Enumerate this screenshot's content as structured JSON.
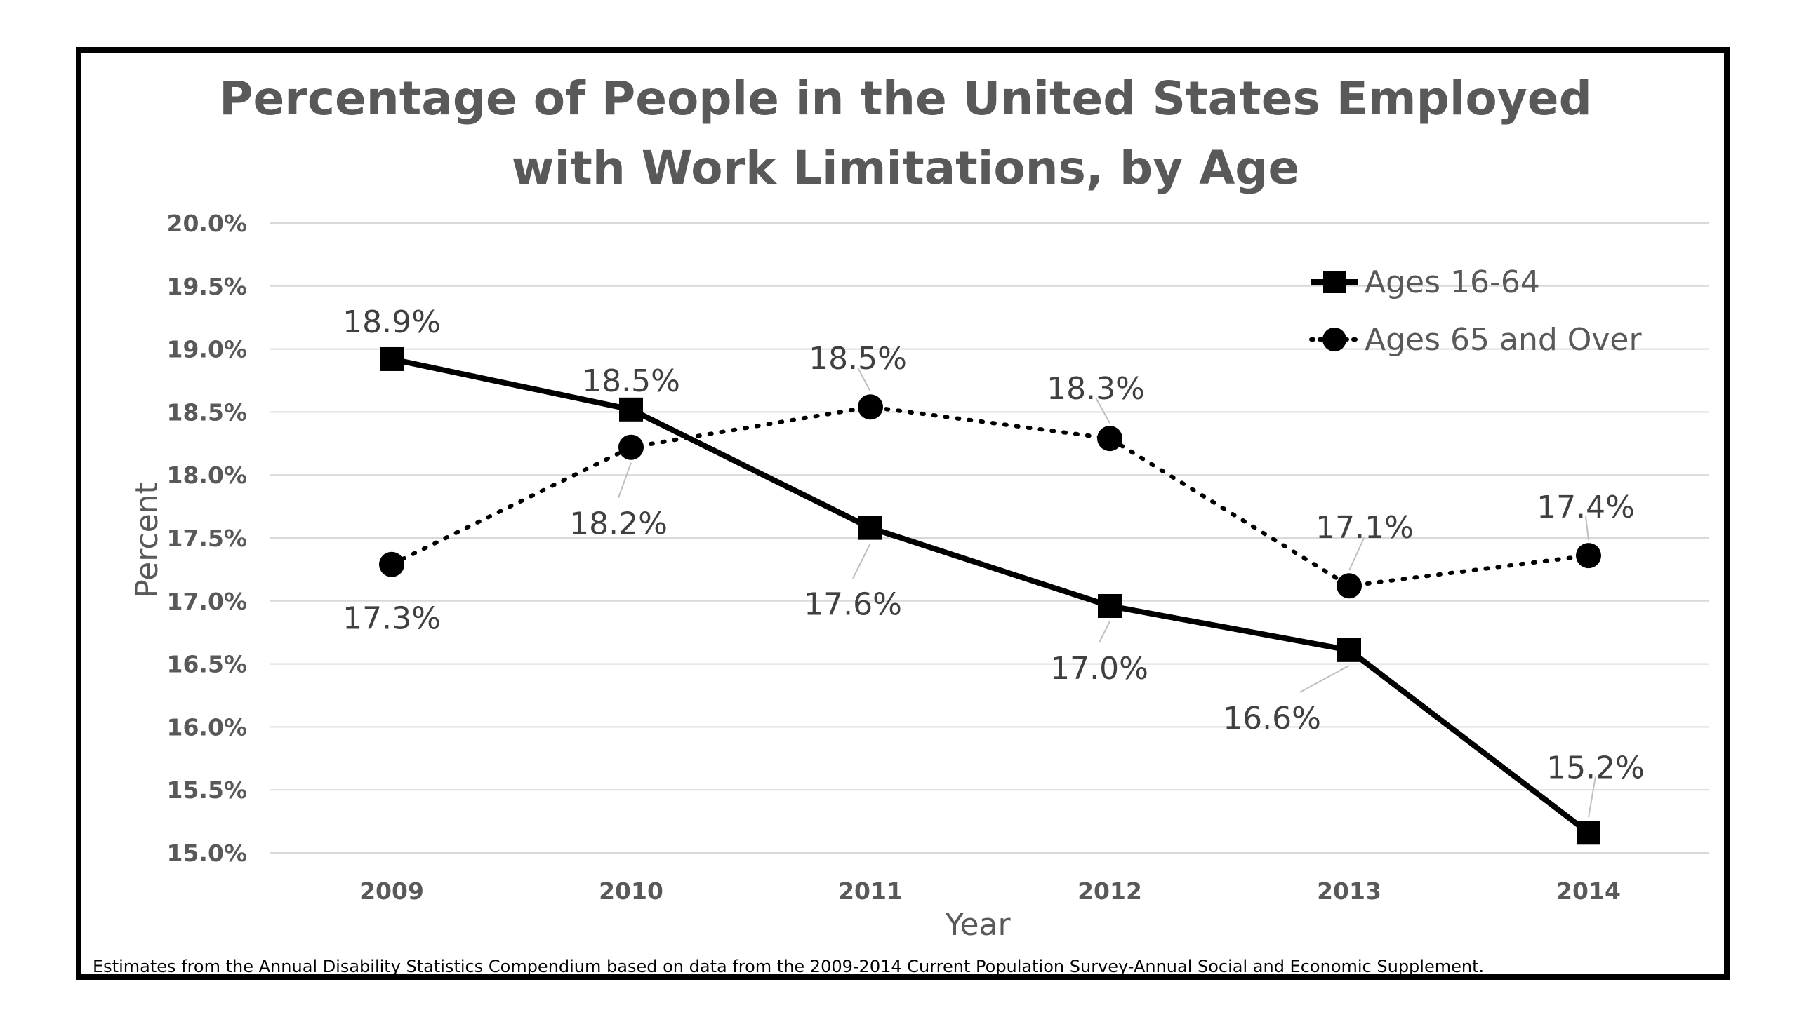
{
  "chart_data": {
    "type": "line",
    "title": "Percentage of People in the United States Employed with Work Limitations, by Age",
    "title_lines": [
      "Percentage of People in the United States Employed",
      "with Work Limitations, by Age"
    ],
    "xlabel": "Year",
    "ylabel": "Percent",
    "categories": [
      "2009",
      "2010",
      "2011",
      "2012",
      "2013",
      "2014"
    ],
    "ylim": [
      15.0,
      20.0
    ],
    "yticks": [
      15.0,
      15.5,
      16.0,
      16.5,
      17.0,
      17.5,
      18.0,
      18.5,
      19.0,
      19.5,
      20.0
    ],
    "ytick_labels": [
      "15.0%",
      "15.5%",
      "16.0%",
      "16.5%",
      "17.0%",
      "17.5%",
      "18.0%",
      "18.5%",
      "19.0%",
      "19.5%",
      "20.0%"
    ],
    "grid": true,
    "legend_position": "top-right",
    "series": [
      {
        "name": "Ages 16-64",
        "marker": "square",
        "line_style": "solid",
        "color": "#000000",
        "values": [
          18.92,
          18.52,
          17.58,
          16.96,
          16.61,
          15.16
        ],
        "labels": [
          "18.9%",
          "18.5%",
          "17.6%",
          "17.0%",
          "16.6%",
          "15.2%"
        ]
      },
      {
        "name": "Ages 65 and Over",
        "marker": "circle",
        "line_style": "dotted",
        "color": "#000000",
        "values": [
          17.29,
          18.22,
          18.54,
          18.29,
          17.12,
          17.36
        ],
        "labels": [
          "17.3%",
          "18.2%",
          "18.5%",
          "18.3%",
          "17.1%",
          "17.4%"
        ]
      }
    ],
    "footnote": "Estimates from the Annual Disability Statistics Compendium based on data from the 2009-2014 Current Population Survey-Annual Social and Economic Supplement."
  }
}
